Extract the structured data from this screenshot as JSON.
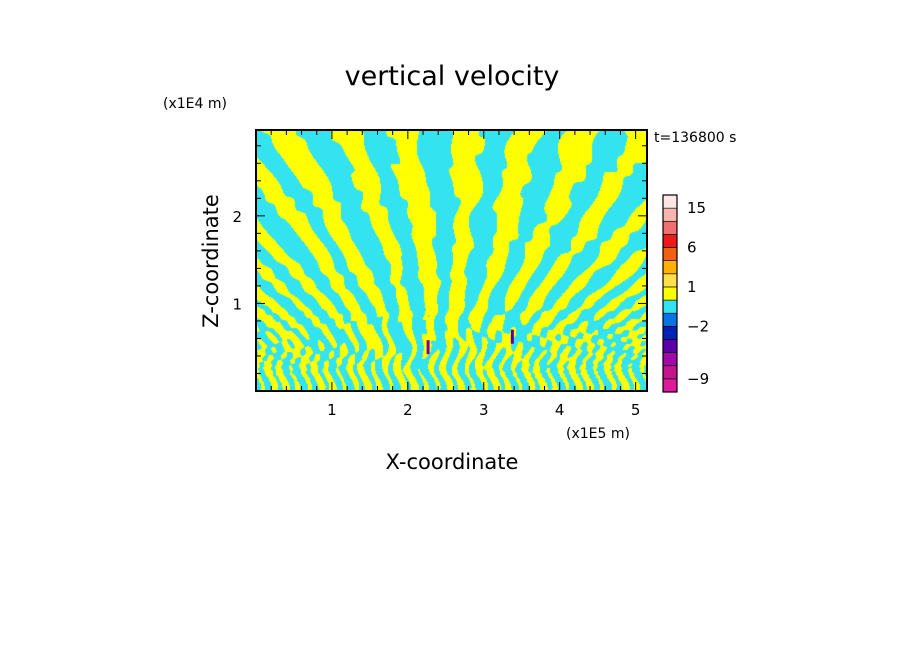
{
  "chart_data": {
    "type": "heatmap",
    "title": "vertical velocity",
    "xlabel": "X-coordinate",
    "ylabel": "Z-coordinate",
    "x_unit": "(x1E5 m)",
    "y_unit": "(x1E4 m)",
    "time_label": "t=136800 s",
    "x_range": [
      0,
      5.15
    ],
    "y_range": [
      0,
      2.98
    ],
    "x_ticks": [
      1,
      2,
      3,
      4,
      5
    ],
    "x_tick_labels": [
      "1",
      "2",
      "3",
      "4",
      "5"
    ],
    "y_ticks": [
      1,
      2
    ],
    "y_tick_labels": [
      "1",
      "2"
    ],
    "colorbar": {
      "levels": [
        {
          "max": -9,
          "color": "#e0199b"
        },
        {
          "max": -7,
          "color": "#c2158e"
        },
        {
          "max": -5,
          "color": "#a00aa8"
        },
        {
          "max": -3,
          "color": "#5a00a6"
        },
        {
          "max": -2,
          "color": "#0022b8"
        },
        {
          "max": -1,
          "color": "#0b72e6"
        },
        {
          "max": 0,
          "color": "#33e4f0"
        },
        {
          "max": 1,
          "color": "#ffff00"
        },
        {
          "max": 2,
          "color": "#ffe04a"
        },
        {
          "max": 4,
          "color": "#ffb000"
        },
        {
          "max": 6,
          "color": "#f06010"
        },
        {
          "max": 9,
          "color": "#ee1a1a"
        },
        {
          "max": 12,
          "color": "#f07070"
        },
        {
          "max": 15,
          "color": "#f7b6b2"
        },
        {
          "max": 20,
          "color": "#fde6e6"
        }
      ],
      "labels": [
        "15",
        "6",
        "1",
        "−2",
        "−9"
      ],
      "label_values": [
        15,
        6,
        1,
        -2,
        -9
      ]
    },
    "dominant_colors": {
      "positive": "#ffff00",
      "negative": "#33e4f0"
    }
  }
}
